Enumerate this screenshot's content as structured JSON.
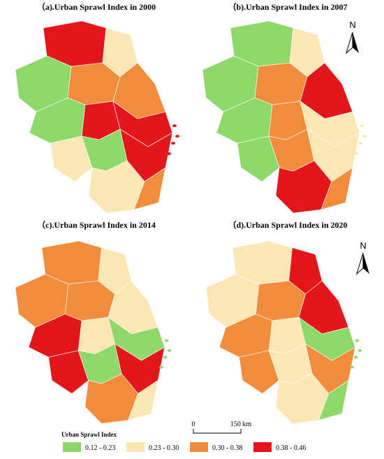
{
  "panels": [
    {
      "title": "（a).Urban Sprawl Index in 2000"
    },
    {
      "title": "（b).Urban Sprawl Index in 2007",
      "north": "N"
    },
    {
      "title": "（c).Urban Sprawl Index in 2014"
    },
    {
      "title": "（d).Urban Sprawl Index in 2020",
      "north": "N"
    }
  ],
  "scale_bar": {
    "labels": [
      "0",
      "150 km"
    ]
  },
  "legend": {
    "title": "Urban Sprawl Index",
    "items": [
      {
        "label": "0.12 - 0.23",
        "color": "#8ed86a"
      },
      {
        "label": "0.23 - 0.30",
        "color": "#fbe6b4"
      },
      {
        "label": "0.30 - 0.38",
        "color": "#f28c3b"
      },
      {
        "label": "0.38 - 0.46",
        "color": "#e3161c"
      }
    ]
  }
}
